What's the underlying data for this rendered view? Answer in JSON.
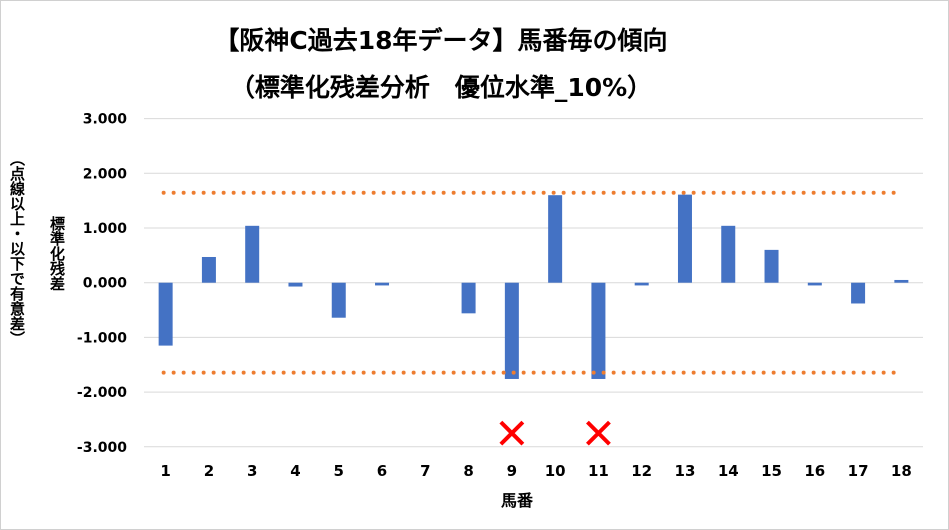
{
  "chart_data": {
    "type": "bar",
    "title": "【阪神C過去18年データ】馬番毎の傾向",
    "subtitle": "（標準化残差分析　優位水準_10%）",
    "xlabel": "馬番",
    "ylabel": "標準化残差",
    "ylabel_note": "（点線以上・以下で有意差）",
    "categories": [
      "1",
      "2",
      "3",
      "4",
      "5",
      "6",
      "7",
      "8",
      "9",
      "10",
      "11",
      "12",
      "13",
      "14",
      "15",
      "16",
      "17",
      "18"
    ],
    "values": [
      -1.15,
      0.47,
      1.04,
      -0.07,
      -0.64,
      -0.05,
      0,
      -0.56,
      -1.76,
      1.6,
      -1.76,
      -0.05,
      1.61,
      1.04,
      0.6,
      -0.05,
      -0.38,
      0.05
    ],
    "ylim": [
      -3,
      3
    ],
    "yticks": [
      "3.000",
      "2.000",
      "1.000",
      "0.000",
      "-1.000",
      "-2.000",
      "-3.000"
    ],
    "ytick_values": [
      3,
      2,
      1,
      0,
      -1,
      -2,
      -3
    ],
    "threshold_lines": [
      1.645,
      -1.645
    ],
    "x_marks": {
      "categories": [
        "9",
        "11"
      ],
      "symbol": "✕",
      "value": -2.75
    },
    "grid": true,
    "colors": {
      "bar": "#4472C4",
      "threshold": "#ED7D31",
      "mark": "#FF0000",
      "grid": "#D9D9D9"
    }
  }
}
